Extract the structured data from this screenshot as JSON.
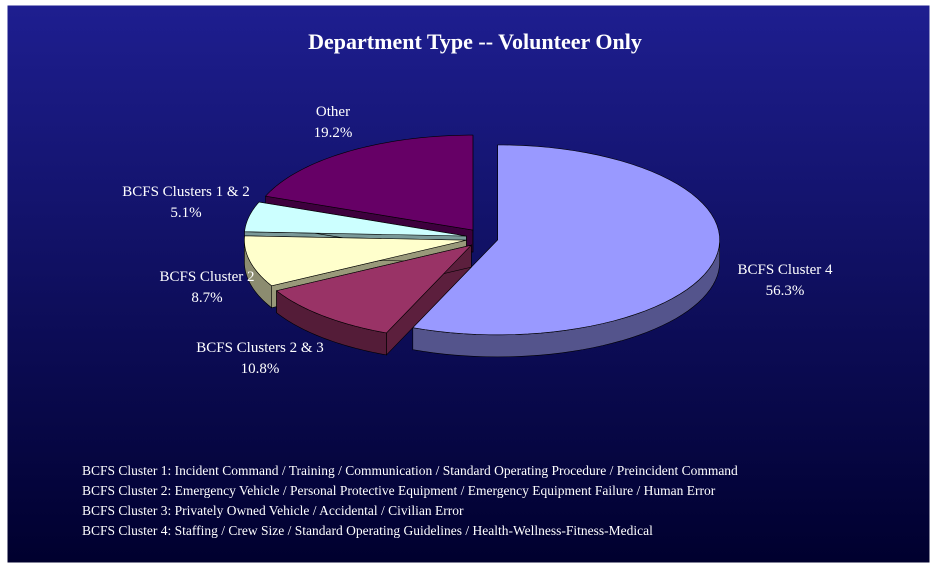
{
  "chart_data": {
    "type": "pie3d",
    "title": "Department Type -- Volunteer Only",
    "categories": [
      "BCFS Cluster 4",
      "BCFS Clusters 2 & 3",
      "BCFS Cluster 2",
      "BCFS Clusters 1 & 2",
      "Other"
    ],
    "values": [
      56.3,
      10.8,
      8.7,
      5.1,
      19.2
    ],
    "value_labels": [
      "56.3%",
      "10.8%",
      "8.7%",
      "5.1%",
      "19.2%"
    ],
    "colors": [
      "#9999ff",
      "#993366",
      "#ffffcc",
      "#ccffff",
      "#660066"
    ],
    "notes": [
      "BCFS Cluster 1:  Incident Command / Training / Communication / Standard Operating Procedure / Preincident Command",
      "BCFS Cluster 2:  Emergency Vehicle / Personal Protective Equipment / Emergency Equipment Failure / Human Error",
      "BCFS Cluster 3:  Privately Owned Vehicle / Accidental / Civilian Error",
      "BCFS Cluster 4:  Staffing / Crew Size / Standard Operating Guidelines / Health-Wellness-Fitness-Medical"
    ]
  }
}
